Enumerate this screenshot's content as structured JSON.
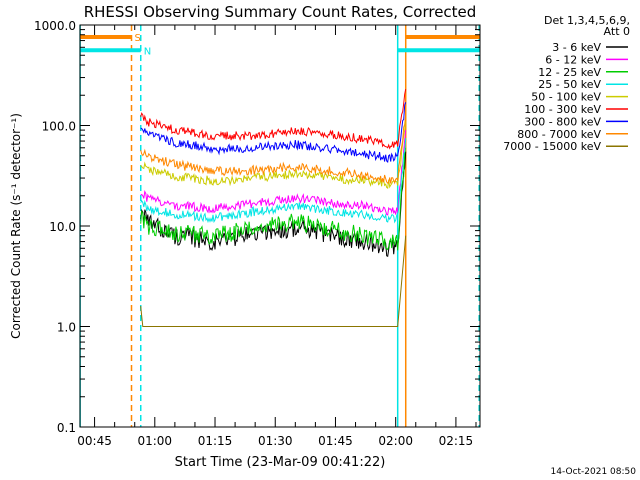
{
  "chart_data": {
    "type": "line",
    "title": "RHESSI Observing Summary Count Rates, Corrected",
    "xlabel": "Start Time (23-Mar-09 00:41:22)",
    "ylabel": "Corrected Count Rate (s⁻¹ detector⁻¹)",
    "y_scale": "log",
    "ylim": [
      0.1,
      1000.0
    ],
    "xlim_minutes": [
      41.37,
      141.0
    ],
    "x_ticks": [
      {
        "t": 45,
        "label": "00:45"
      },
      {
        "t": 60,
        "label": "01:00"
      },
      {
        "t": 75,
        "label": "01:15"
      },
      {
        "t": 90,
        "label": "01:30"
      },
      {
        "t": 105,
        "label": "01:45"
      },
      {
        "t": 120,
        "label": "02:00"
      },
      {
        "t": 135,
        "label": "02:15"
      }
    ],
    "y_ticks": [
      {
        "v": 1000,
        "label": "1000.0"
      },
      {
        "v": 100,
        "label": "100.0"
      },
      {
        "v": 10,
        "label": "10.0"
      },
      {
        "v": 1,
        "label": "1.0"
      },
      {
        "v": 0.1,
        "label": "0.1"
      }
    ],
    "legend_header": [
      "Det 1,3,4,5,6,9,",
      "Att 0"
    ],
    "legend_position": "right",
    "series": [
      {
        "name": "3 - 6 keV",
        "color": "#000000",
        "t": [
          56.5,
          58,
          65,
          75,
          85,
          95,
          105,
          112,
          119,
          120.5,
          122.5
        ],
        "values": [
          14,
          11,
          8,
          7,
          8.5,
          9.5,
          8,
          7,
          6,
          6,
          55
        ]
      },
      {
        "name": "6 - 12 keV",
        "color": "#ff00ff",
        "t": [
          56.5,
          58,
          65,
          75,
          85,
          95,
          105,
          112,
          119,
          120.5,
          122.5
        ],
        "values": [
          22,
          19,
          16,
          15,
          17,
          19,
          17,
          16,
          14,
          14,
          90
        ]
      },
      {
        "name": "12 - 25 keV",
        "color": "#00cc00",
        "t": [
          56.5,
          58,
          65,
          75,
          85,
          95,
          105,
          112,
          119,
          120.5,
          122.5
        ],
        "values": [
          12,
          10,
          8.5,
          8,
          9.5,
          11,
          9,
          8,
          7,
          7,
          60
        ]
      },
      {
        "name": "25 - 50 keV",
        "color": "#00e5e5",
        "t": [
          56.5,
          58,
          65,
          75,
          85,
          95,
          105,
          112,
          119,
          120.5,
          122.5
        ],
        "values": [
          18,
          15,
          13,
          12,
          14,
          16,
          14,
          13,
          12,
          12,
          75
        ]
      },
      {
        "name": "50 - 100 keV",
        "color": "#cccc00",
        "t": [
          56.5,
          58,
          65,
          75,
          85,
          95,
          105,
          112,
          119,
          120.5,
          122.5
        ],
        "values": [
          42,
          37,
          31,
          28,
          30,
          33,
          30,
          28,
          26,
          26,
          110
        ]
      },
      {
        "name": "100 - 300 keV",
        "color": "#ff0000",
        "t": [
          56.5,
          58,
          65,
          75,
          85,
          95,
          105,
          112,
          119,
          120.5,
          122.5
        ],
        "values": [
          125,
          108,
          90,
          78,
          80,
          88,
          80,
          73,
          65,
          68,
          230
        ]
      },
      {
        "name": "300 - 800 keV",
        "color": "#0000ff",
        "t": [
          56.5,
          58,
          65,
          75,
          85,
          95,
          105,
          112,
          119,
          120.5,
          122.5
        ],
        "values": [
          95,
          82,
          68,
          58,
          60,
          65,
          58,
          52,
          47,
          48,
          170
        ]
      },
      {
        "name": "800 - 7000 keV",
        "color": "#ff8800",
        "t": [
          56.5,
          58,
          65,
          75,
          85,
          95,
          105,
          112,
          119,
          120.5,
          122.5
        ],
        "values": [
          57,
          50,
          41,
          35,
          36,
          39,
          35,
          32,
          29,
          29,
          130
        ]
      },
      {
        "name": "7000 - 15000 keV",
        "color": "#8b7500",
        "t": [
          56.5,
          57,
          60,
          75,
          95,
          105,
          119,
          120.5,
          122.5
        ],
        "values": [
          1.6,
          1.0,
          1.0,
          1.0,
          1.0,
          1.0,
          1.0,
          1.0,
          8.0
        ]
      }
    ],
    "flags": [
      {
        "label": "S",
        "color": "#ff8800",
        "t_start": 41.37,
        "t_end": 54.2,
        "level": 760
      },
      {
        "label": "N",
        "color": "#00e5e5",
        "t_start": 41.37,
        "t_end": 56.5,
        "level": 560
      },
      {
        "label": "",
        "color": "#ff8800",
        "t_start": 122.5,
        "t_end": 141.0,
        "level": 760
      },
      {
        "label": "",
        "color": "#00e5e5",
        "t_start": 120.5,
        "t_end": 141.0,
        "level": 560
      }
    ],
    "vertical_markers": [
      {
        "t": 41.4,
        "color": "#00e5e5",
        "style": "solid"
      },
      {
        "t": 54.2,
        "color": "#ff8800",
        "style": "dashed"
      },
      {
        "t": 56.5,
        "color": "#00e5e5",
        "style": "dashed"
      },
      {
        "t": 120.5,
        "color": "#00e5e5",
        "style": "solid"
      },
      {
        "t": 122.5,
        "color": "#ff8800",
        "style": "solid"
      },
      {
        "t": 140.8,
        "color": "#ff8800",
        "style": "dashed"
      },
      {
        "t": 140.8,
        "color": "#00e5e5",
        "style": "dashed"
      }
    ],
    "footer_timestamp": "14-Oct-2021 08:50"
  }
}
